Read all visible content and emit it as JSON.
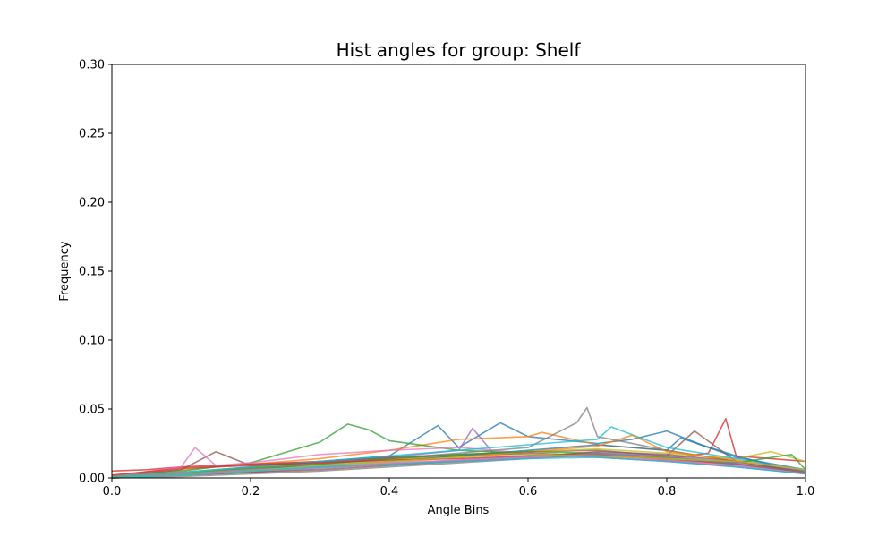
{
  "chart_data": {
    "type": "line",
    "title": "Hist angles for group: Shelf",
    "xlabel": "Angle Bins",
    "ylabel": "Frequency",
    "xlim": [
      0.0,
      1.0
    ],
    "ylim": [
      0.0,
      0.3
    ],
    "x_ticks": [
      "0.0",
      "0.2",
      "0.4",
      "0.6",
      "0.8",
      "1.0"
    ],
    "y_ticks": [
      "0.00",
      "0.05",
      "0.10",
      "0.15",
      "0.20",
      "0.25",
      "0.30"
    ],
    "grid": false,
    "legend": "none",
    "series_colors": [
      "#1f77b4",
      "#ff7f0e",
      "#2ca02c",
      "#d62728",
      "#9467bd",
      "#8c564b",
      "#e377c2",
      "#7f7f7f",
      "#bcbd22",
      "#17becf"
    ],
    "series": [
      {
        "color": "#1f77b4",
        "x": [
          0.0,
          0.1,
          0.2,
          0.3,
          0.4,
          0.47,
          0.5,
          0.56,
          0.6,
          0.7,
          0.75,
          0.8,
          0.85,
          0.9,
          1.0
        ],
        "y": [
          0.001,
          0.004,
          0.008,
          0.012,
          0.016,
          0.038,
          0.022,
          0.04,
          0.03,
          0.025,
          0.028,
          0.034,
          0.024,
          0.016,
          0.003
        ]
      },
      {
        "color": "#ff7f0e",
        "x": [
          0.0,
          0.1,
          0.2,
          0.3,
          0.4,
          0.5,
          0.6,
          0.62,
          0.7,
          0.8,
          0.9,
          1.0
        ],
        "y": [
          0.002,
          0.006,
          0.01,
          0.014,
          0.02,
          0.028,
          0.03,
          0.033,
          0.024,
          0.02,
          0.012,
          0.004
        ]
      },
      {
        "color": "#2ca02c",
        "x": [
          0.0,
          0.1,
          0.2,
          0.3,
          0.34,
          0.37,
          0.4,
          0.5,
          0.6,
          0.7,
          0.8,
          0.9,
          1.0
        ],
        "y": [
          0.001,
          0.005,
          0.011,
          0.026,
          0.039,
          0.035,
          0.027,
          0.02,
          0.018,
          0.016,
          0.014,
          0.01,
          0.004
        ]
      },
      {
        "color": "#d62728",
        "x": [
          0.0,
          0.05,
          0.1,
          0.2,
          0.3,
          0.4,
          0.5,
          0.6,
          0.7,
          0.8,
          0.86,
          0.885,
          0.9,
          1.0
        ],
        "y": [
          0.005,
          0.006,
          0.008,
          0.01,
          0.012,
          0.014,
          0.016,
          0.018,
          0.016,
          0.014,
          0.018,
          0.043,
          0.016,
          0.012
        ]
      },
      {
        "color": "#9467bd",
        "x": [
          0.0,
          0.1,
          0.2,
          0.3,
          0.4,
          0.5,
          0.52,
          0.55,
          0.6,
          0.7,
          0.8,
          0.9,
          1.0
        ],
        "y": [
          0.001,
          0.004,
          0.007,
          0.011,
          0.015,
          0.02,
          0.036,
          0.018,
          0.017,
          0.015,
          0.012,
          0.008,
          0.003
        ]
      },
      {
        "color": "#8c564b",
        "x": [
          0.0,
          0.1,
          0.15,
          0.2,
          0.3,
          0.4,
          0.5,
          0.6,
          0.7,
          0.8,
          0.84,
          0.9,
          1.0
        ],
        "y": [
          0.001,
          0.006,
          0.019,
          0.009,
          0.012,
          0.015,
          0.017,
          0.019,
          0.02,
          0.016,
          0.034,
          0.012,
          0.004
        ]
      },
      {
        "color": "#e377c2",
        "x": [
          0.0,
          0.1,
          0.12,
          0.15,
          0.2,
          0.3,
          0.4,
          0.5,
          0.6,
          0.7,
          0.8,
          0.9,
          1.0
        ],
        "y": [
          0.001,
          0.008,
          0.022,
          0.009,
          0.011,
          0.017,
          0.02,
          0.022,
          0.018,
          0.015,
          0.012,
          0.009,
          0.004
        ]
      },
      {
        "color": "#7f7f7f",
        "x": [
          0.0,
          0.1,
          0.2,
          0.3,
          0.4,
          0.5,
          0.6,
          0.67,
          0.685,
          0.7,
          0.8,
          0.9,
          1.0
        ],
        "y": [
          0.001,
          0.003,
          0.006,
          0.01,
          0.014,
          0.018,
          0.022,
          0.04,
          0.051,
          0.03,
          0.02,
          0.012,
          0.005
        ]
      },
      {
        "color": "#bcbd22",
        "x": [
          0.0,
          0.1,
          0.2,
          0.3,
          0.4,
          0.5,
          0.6,
          0.7,
          0.8,
          0.9,
          0.95,
          1.0
        ],
        "y": [
          0.001,
          0.004,
          0.007,
          0.01,
          0.013,
          0.016,
          0.019,
          0.021,
          0.018,
          0.014,
          0.019,
          0.012
        ]
      },
      {
        "color": "#17becf",
        "x": [
          0.0,
          0.1,
          0.2,
          0.3,
          0.4,
          0.5,
          0.6,
          0.7,
          0.72,
          0.8,
          0.9,
          1.0
        ],
        "y": [
          0.001,
          0.004,
          0.008,
          0.012,
          0.016,
          0.02,
          0.024,
          0.028,
          0.037,
          0.022,
          0.014,
          0.005
        ]
      },
      {
        "color": "#1f77b4",
        "x": [
          0.0,
          0.1,
          0.2,
          0.3,
          0.4,
          0.5,
          0.6,
          0.7,
          0.8,
          0.82,
          0.9,
          1.0
        ],
        "y": [
          0.0,
          0.003,
          0.006,
          0.009,
          0.012,
          0.016,
          0.02,
          0.024,
          0.02,
          0.029,
          0.015,
          0.006
        ]
      },
      {
        "color": "#ff7f0e",
        "x": [
          0.0,
          0.1,
          0.2,
          0.3,
          0.4,
          0.5,
          0.6,
          0.7,
          0.75,
          0.8,
          0.9,
          1.0
        ],
        "y": [
          0.0,
          0.002,
          0.005,
          0.008,
          0.011,
          0.015,
          0.019,
          0.023,
          0.031,
          0.019,
          0.013,
          0.005
        ]
      },
      {
        "color": "#2ca02c",
        "x": [
          0.0,
          0.1,
          0.2,
          0.3,
          0.4,
          0.5,
          0.6,
          0.7,
          0.8,
          0.9,
          0.98,
          1.0
        ],
        "y": [
          0.0,
          0.003,
          0.007,
          0.01,
          0.014,
          0.017,
          0.019,
          0.018,
          0.015,
          0.011,
          0.017,
          0.006
        ]
      },
      {
        "color": "#d62728",
        "x": [
          0.0,
          0.1,
          0.2,
          0.3,
          0.4,
          0.5,
          0.6,
          0.7,
          0.8,
          0.9,
          1.0
        ],
        "y": [
          0.002,
          0.007,
          0.009,
          0.011,
          0.013,
          0.014,
          0.016,
          0.017,
          0.013,
          0.01,
          0.004
        ]
      },
      {
        "color": "#9467bd",
        "x": [
          0.0,
          0.1,
          0.2,
          0.3,
          0.4,
          0.5,
          0.6,
          0.7,
          0.8,
          0.9,
          1.0
        ],
        "y": [
          0.0,
          0.002,
          0.004,
          0.007,
          0.01,
          0.013,
          0.016,
          0.018,
          0.016,
          0.011,
          0.005
        ]
      },
      {
        "color": "#8c564b",
        "x": [
          0.0,
          0.1,
          0.2,
          0.3,
          0.4,
          0.5,
          0.6,
          0.7,
          0.8,
          0.9,
          1.0
        ],
        "y": [
          0.0,
          0.002,
          0.004,
          0.006,
          0.009,
          0.012,
          0.015,
          0.019,
          0.017,
          0.012,
          0.004
        ]
      },
      {
        "color": "#e377c2",
        "x": [
          0.0,
          0.1,
          0.2,
          0.3,
          0.4,
          0.5,
          0.6,
          0.7,
          0.8,
          0.9,
          1.0
        ],
        "y": [
          0.0,
          0.003,
          0.006,
          0.008,
          0.011,
          0.013,
          0.015,
          0.016,
          0.013,
          0.009,
          0.003
        ]
      },
      {
        "color": "#7f7f7f",
        "x": [
          0.0,
          0.1,
          0.2,
          0.3,
          0.4,
          0.5,
          0.6,
          0.7,
          0.8,
          0.9,
          1.0
        ],
        "y": [
          0.0,
          0.001,
          0.003,
          0.005,
          0.008,
          0.011,
          0.014,
          0.017,
          0.015,
          0.01,
          0.004
        ]
      },
      {
        "color": "#bcbd22",
        "x": [
          0.0,
          0.1,
          0.2,
          0.3,
          0.4,
          0.5,
          0.6,
          0.7,
          0.8,
          0.9,
          1.0
        ],
        "y": [
          0.0,
          0.002,
          0.005,
          0.009,
          0.012,
          0.015,
          0.017,
          0.016,
          0.014,
          0.012,
          0.006
        ]
      },
      {
        "color": "#17becf",
        "x": [
          0.0,
          0.1,
          0.2,
          0.3,
          0.4,
          0.5,
          0.6,
          0.7,
          0.8,
          0.9,
          1.0
        ],
        "y": [
          0.0,
          0.002,
          0.005,
          0.008,
          0.01,
          0.012,
          0.014,
          0.015,
          0.012,
          0.008,
          0.003
        ]
      }
    ]
  }
}
